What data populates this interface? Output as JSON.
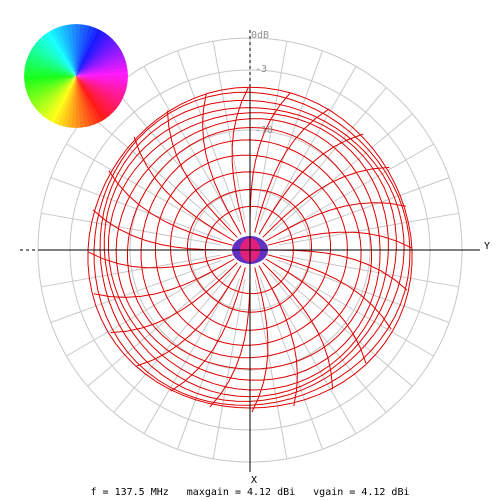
{
  "plot": {
    "db_labels": [
      "0dB",
      "-3",
      "-10"
    ],
    "y_axis_label": "Y",
    "x_axis_label": "X"
  },
  "status": {
    "frequency": "f = 137.5 MHz",
    "maxgain": "maxgain = 4.12 dBi",
    "vgain": "vgain = 4.12 dBi"
  },
  "colors": {
    "grid": "#c8c8c8",
    "pattern": "#e00000",
    "axes": "#000000",
    "center_blob_outer": "#6030c0",
    "center_blob_inner": "#e0207a"
  },
  "icons": {
    "color_wheel": "phase-color-wheel-icon"
  }
}
